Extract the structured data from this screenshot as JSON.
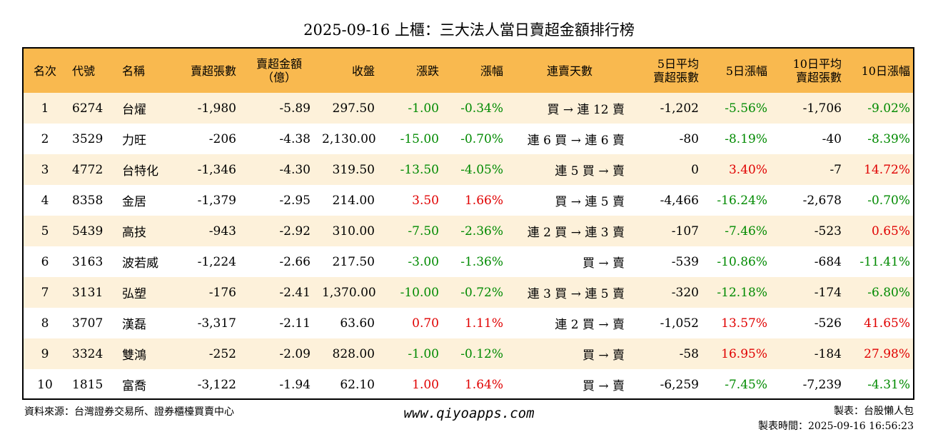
{
  "title": "2025-09-16 上櫃：三大法人當日賣超金額排行榜",
  "headers": {
    "rank": "名次",
    "code": "代號",
    "name": "名稱",
    "sell_shares": "賣超張數",
    "sell_amount_1": "賣超金額",
    "sell_amount_2": "（億）",
    "close": "收盤",
    "change": "漲跌",
    "change_pct": "漲幅",
    "streak": "連賣天數",
    "avg5_1": "5日平均",
    "avg5_2": "賣超張數",
    "pct5": "5日漲幅",
    "avg10_1": "10日平均",
    "avg10_2": "賣超張數",
    "pct10": "10日漲幅"
  },
  "rows": [
    {
      "rank": "1",
      "code": "6274",
      "name": "台燿",
      "shares": "-1,980",
      "amount": "-5.89",
      "close": "297.50",
      "change": "-1.00",
      "change_pct": "-0.34%",
      "streak": "買 → 連 12 賣",
      "avg5": "-1,202",
      "pct5": "-5.56%",
      "avg10": "-1,706",
      "pct10": "-9.02%"
    },
    {
      "rank": "2",
      "code": "3529",
      "name": "力旺",
      "shares": "-206",
      "amount": "-4.38",
      "close": "2,130.00",
      "change": "-15.00",
      "change_pct": "-0.70%",
      "streak": "連 6 買 → 連 6 賣",
      "avg5": "-80",
      "pct5": "-8.19%",
      "avg10": "-40",
      "pct10": "-8.39%"
    },
    {
      "rank": "3",
      "code": "4772",
      "name": "台特化",
      "shares": "-1,346",
      "amount": "-4.30",
      "close": "319.50",
      "change": "-13.50",
      "change_pct": "-4.05%",
      "streak": "連 5 買 → 賣",
      "avg5": "0",
      "pct5": "3.40%",
      "avg10": "-7",
      "pct10": "14.72%"
    },
    {
      "rank": "4",
      "code": "8358",
      "name": "金居",
      "shares": "-1,379",
      "amount": "-2.95",
      "close": "214.00",
      "change": "3.50",
      "change_pct": "1.66%",
      "streak": "買 → 連 5 賣",
      "avg5": "-4,466",
      "pct5": "-16.24%",
      "avg10": "-2,678",
      "pct10": "-0.70%"
    },
    {
      "rank": "5",
      "code": "5439",
      "name": "高技",
      "shares": "-943",
      "amount": "-2.92",
      "close": "310.00",
      "change": "-7.50",
      "change_pct": "-2.36%",
      "streak": "連 2 買 → 連 3 賣",
      "avg5": "-107",
      "pct5": "-7.46%",
      "avg10": "-523",
      "pct10": "0.65%"
    },
    {
      "rank": "6",
      "code": "3163",
      "name": "波若威",
      "shares": "-1,224",
      "amount": "-2.66",
      "close": "217.50",
      "change": "-3.00",
      "change_pct": "-1.36%",
      "streak": "買 → 賣",
      "avg5": "-539",
      "pct5": "-10.86%",
      "avg10": "-684",
      "pct10": "-11.41%"
    },
    {
      "rank": "7",
      "code": "3131",
      "name": "弘塑",
      "shares": "-176",
      "amount": "-2.41",
      "close": "1,370.00",
      "change": "-10.00",
      "change_pct": "-0.72%",
      "streak": "連 3 買 → 連 5 賣",
      "avg5": "-320",
      "pct5": "-12.18%",
      "avg10": "-174",
      "pct10": "-6.80%"
    },
    {
      "rank": "8",
      "code": "3707",
      "name": "漢磊",
      "shares": "-3,317",
      "amount": "-2.11",
      "close": "63.60",
      "change": "0.70",
      "change_pct": "1.11%",
      "streak": "連 2 買 → 賣",
      "avg5": "-1,052",
      "pct5": "13.57%",
      "avg10": "-526",
      "pct10": "41.65%"
    },
    {
      "rank": "9",
      "code": "3324",
      "name": "雙鴻",
      "shares": "-252",
      "amount": "-2.09",
      "close": "828.00",
      "change": "-1.00",
      "change_pct": "-0.12%",
      "streak": "買 → 賣",
      "avg5": "-58",
      "pct5": "16.95%",
      "avg10": "-184",
      "pct10": "27.98%"
    },
    {
      "rank": "10",
      "code": "1815",
      "name": "富喬",
      "shares": "-3,122",
      "amount": "-1.94",
      "close": "62.10",
      "change": "1.00",
      "change_pct": "1.64%",
      "streak": "買 → 賣",
      "avg5": "-6,259",
      "pct5": "-7.45%",
      "avg10": "-7,239",
      "pct10": "-4.31%"
    }
  ],
  "colors": {
    "header_bg": "#f9b94f",
    "stripe_bg": "#fdf1da",
    "positive": "#e00000",
    "negative": "#008a00"
  },
  "footer": {
    "source": "資料來源：台灣證券交易所、證券櫃檯買賣中心",
    "website": "www.qiyoapps.com",
    "maker": "製表：台股懶人包",
    "made_time": "製表時間：2025-09-16 16:56:23"
  }
}
